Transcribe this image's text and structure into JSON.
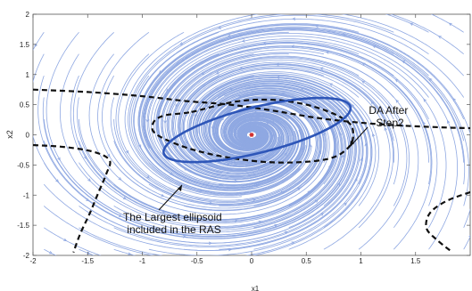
{
  "chart_data": {
    "type": "phase_portrait",
    "title": "",
    "xlabel": "x1",
    "ylabel": "x2",
    "xlim": [
      -2,
      2
    ],
    "ylim": [
      -2,
      2
    ],
    "xticks": [
      "-2",
      "-1.5",
      "-1",
      "-0.5",
      "0",
      "0.5",
      "1",
      "1.5"
    ],
    "yticks": [
      "2",
      "1.5",
      "1",
      "0.5",
      "0",
      "-0.5",
      "-1",
      "-1.5",
      "-2"
    ],
    "grid": false,
    "equilibrium": {
      "x": 0,
      "y": 0,
      "marker": "*"
    },
    "ellipsoid": {
      "label": "The Largest ellipsoid included in the RAS",
      "label_lines": [
        "The Largest ellipsoid",
        "included in the RAS"
      ],
      "center": [
        0.05,
        0.08
      ],
      "semi_axes": [
        0.88,
        0.38
      ],
      "tilt_deg": -14,
      "color": "#2e56b8"
    },
    "da_after_step2": {
      "label": "DA After Step2",
      "label_lines": [
        "DA After",
        "Step2"
      ],
      "color": "#111111",
      "closed_curve": [
        [
          -0.55,
          0.38
        ],
        [
          -0.15,
          0.55
        ],
        [
          0.2,
          0.58
        ],
        [
          0.5,
          0.5
        ],
        [
          0.75,
          0.35
        ],
        [
          0.9,
          0.18
        ],
        [
          0.93,
          0.0
        ],
        [
          0.9,
          -0.18
        ],
        [
          0.78,
          -0.35
        ],
        [
          0.6,
          -0.43
        ],
        [
          0.3,
          -0.46
        ],
        [
          0.0,
          -0.43
        ],
        [
          -0.35,
          -0.33
        ],
        [
          -0.65,
          -0.18
        ],
        [
          -0.88,
          0.02
        ],
        [
          -0.9,
          0.2
        ],
        [
          -0.8,
          0.32
        ],
        [
          -0.55,
          0.38
        ]
      ],
      "boundary_upper": [
        [
          -2,
          0.75
        ],
        [
          -1.5,
          0.71
        ],
        [
          -1.0,
          0.64
        ],
        [
          -0.6,
          0.56
        ],
        [
          -0.2,
          0.5
        ],
        [
          0.2,
          0.4
        ],
        [
          0.6,
          0.28
        ],
        [
          1.0,
          0.2
        ],
        [
          1.4,
          0.15
        ],
        [
          1.8,
          0.12
        ],
        [
          2,
          0.11
        ]
      ],
      "boundary_left": [
        [
          -2,
          -0.17
        ],
        [
          -1.72,
          -0.2
        ],
        [
          -1.45,
          -0.28
        ],
        [
          -1.3,
          -0.42
        ],
        [
          -1.33,
          -0.65
        ],
        [
          -1.4,
          -0.95
        ],
        [
          -1.48,
          -1.3
        ],
        [
          -1.57,
          -1.65
        ],
        [
          -1.63,
          -1.95
        ]
      ],
      "boundary_right": [
        [
          2,
          -0.95
        ],
        [
          1.78,
          -1.1
        ],
        [
          1.63,
          -1.3
        ],
        [
          1.6,
          -1.55
        ],
        [
          1.7,
          -1.75
        ],
        [
          1.84,
          -1.95
        ]
      ]
    },
    "streamline_color": "#8fa8e2"
  }
}
